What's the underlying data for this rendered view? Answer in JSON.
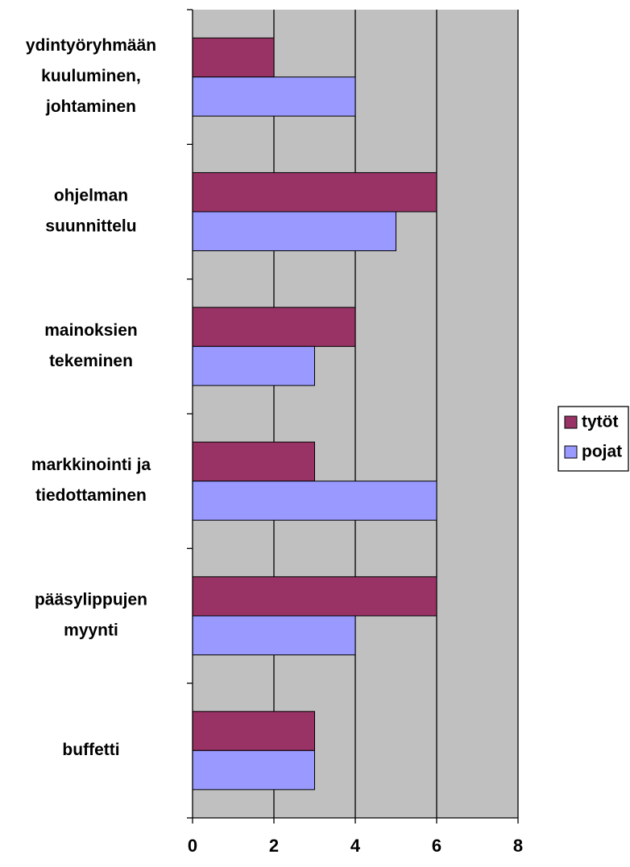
{
  "chart_data": {
    "type": "hbar",
    "categories": [
      [
        "ydintyöryhmään",
        "kuuluminen,",
        "johtaminen"
      ],
      [
        "ohjelman",
        "suunnittelu"
      ],
      [
        "mainoksien",
        "tekeminen"
      ],
      [
        "markkinointi ja",
        "tiedottaminen"
      ],
      [
        "pääsylippujen",
        "myynti"
      ],
      [
        "buffetti"
      ]
    ],
    "series": [
      {
        "name": "tytöt",
        "color": "#993366",
        "values": [
          2,
          6,
          4,
          3,
          6,
          3
        ]
      },
      {
        "name": "pojat",
        "color": "#9999ff",
        "values": [
          4,
          5,
          3,
          6,
          4,
          3
        ]
      }
    ],
    "xlim": [
      0,
      8
    ],
    "xticks": [
      0,
      2,
      4,
      6,
      8
    ],
    "grid": true,
    "legend": "right",
    "plot_background": "#c0c0c0"
  }
}
